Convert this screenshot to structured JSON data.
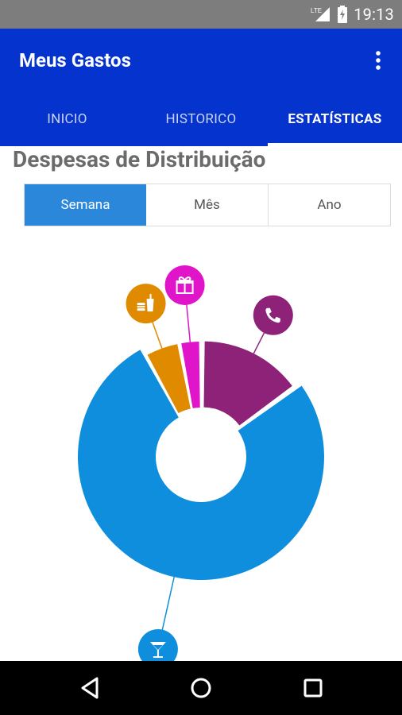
{
  "status_bar": {
    "network_label": "LTE",
    "time": "19:13",
    "icons": [
      "lte-signal-icon",
      "battery-charging-icon"
    ]
  },
  "app_bar": {
    "title": "Meus Gastos",
    "menu_icon": "overflow-menu-icon"
  },
  "tabs": [
    {
      "label": "INICIO",
      "active": false
    },
    {
      "label": "HISTORICO",
      "active": false
    },
    {
      "label": "ESTATÍSTICAS",
      "active": true
    }
  ],
  "section_title": "Despesas de Distribuição",
  "period_selector": {
    "options": [
      "Semana",
      "Mês",
      "Ano"
    ],
    "selected": "Semana"
  },
  "chart_data": {
    "type": "pie",
    "title": "",
    "donut": true,
    "slices": [
      {
        "category": "telefone",
        "icon": "phone-icon",
        "value": 15,
        "color": "#8E2178"
      },
      {
        "category": "bebidas",
        "icon": "cocktail-glass-icon",
        "value": 77,
        "color": "#0E8EDD"
      },
      {
        "category": "comida",
        "icon": "fast-food-icon",
        "value": 5,
        "color": "#E08A00"
      },
      {
        "category": "presentes",
        "icon": "gift-icon",
        "value": 3,
        "color": "#E015C9"
      }
    ]
  },
  "nav_bar": {
    "icons": [
      "back-icon",
      "home-icon",
      "recents-icon"
    ]
  }
}
